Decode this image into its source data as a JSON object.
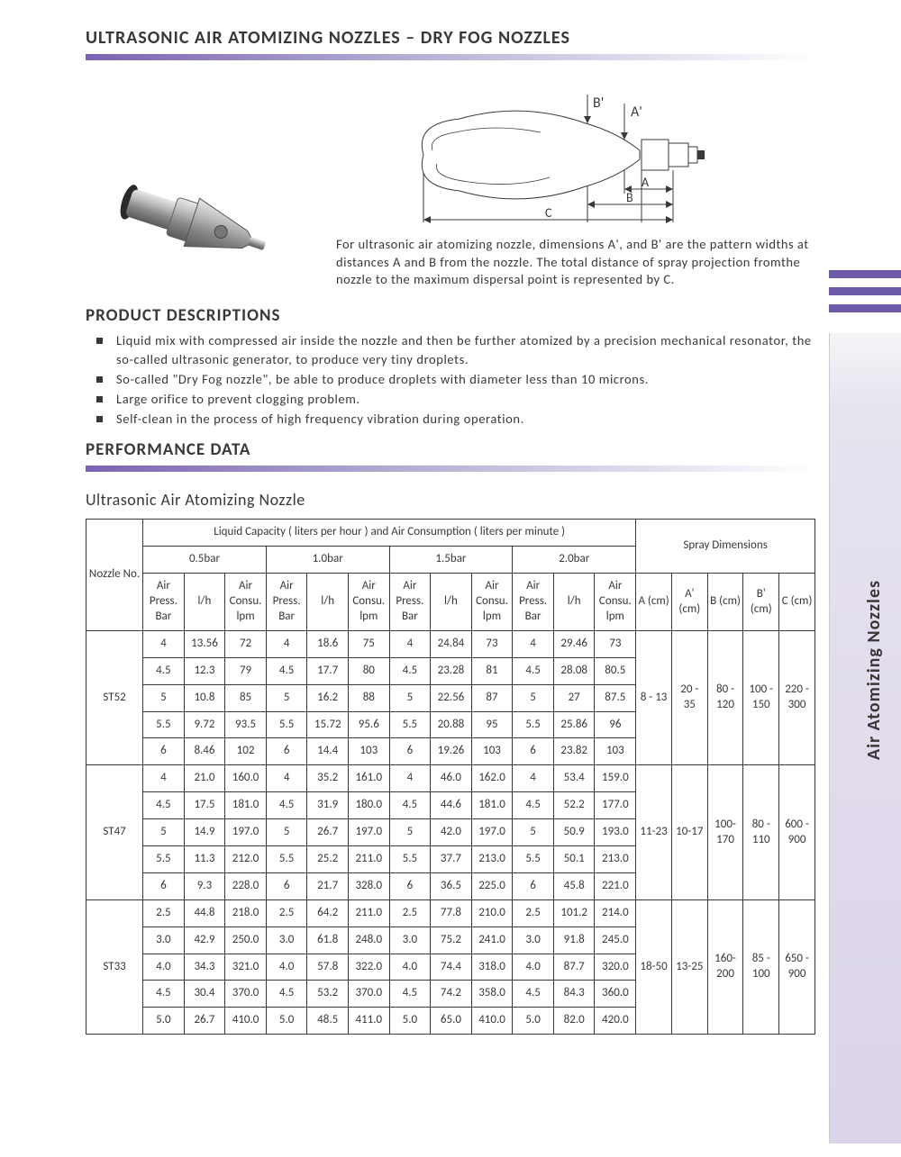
{
  "title": "ULTRASONIC AIR ATOMIZING NOZZLES – DRY FOG NOZZLES",
  "side_label": "Air Atomizing Nozzles",
  "diagram": {
    "labels": [
      "B'",
      "A'",
      "A",
      "B",
      "C"
    ],
    "text": "For ultrasonic air atomizing nozzle, dimensions A', and B' are the pattern widths at distances A and B from the nozzle. The total distance of spray projection fromthe nozzle to the maximum dispersal point is represented by C."
  },
  "colors": {
    "accent": "#6d5aa8",
    "text": "#3b3738",
    "border": "#3b3738",
    "grad_start": "#7865b1",
    "grad_mid": "#b8aed4"
  },
  "section_desc": "PRODUCT DESCRIPTIONS",
  "bullets": [
    "Liquid mix with compressed air inside the nozzle and then be further atomized by a precision mechanical resonator, the so-called ultrasonic generator, to produce very tiny droplets.",
    "So-called \"Dry Fog nozzle\", be able to produce droplets with diameter less than 10 microns.",
    "Large orifice to prevent clogging problem.",
    "Self-clean in the process of high frequency vibration during operation."
  ],
  "section_perf": "PERFORMANCE DATA",
  "sub_title": "Ultrasonic Air Atomizing Nozzle",
  "table": {
    "main_header": "Liquid Capacity ( liters per hour ) and Air Consumption ( liters per minute )",
    "spray_header": "Spray Dimensions",
    "nozzle_header": "Nozzle No.",
    "pressure_groups": [
      "0.5bar",
      "1.0bar",
      "1.5bar",
      "2.0bar"
    ],
    "sub_headers": [
      "Air Press. Bar",
      "l/h",
      "Air Consu. lpm"
    ],
    "sub_headers_last": [
      "Air Press. Bar",
      "l/h",
      "Air Consu. lpm"
    ],
    "dim_headers": [
      "A (cm)",
      "A' (cm)",
      "B (cm)",
      "B' (cm)",
      "C (cm)"
    ],
    "nozzles": [
      {
        "id": "ST52",
        "rows": [
          [
            "4",
            "13.56",
            "72",
            "4",
            "18.6",
            "75",
            "4",
            "24.84",
            "73",
            "4",
            "29.46",
            "73"
          ],
          [
            "4.5",
            "12.3",
            "79",
            "4.5",
            "17.7",
            "80",
            "4.5",
            "23.28",
            "81",
            "4.5",
            "28.08",
            "80.5"
          ],
          [
            "5",
            "10.8",
            "85",
            "5",
            "16.2",
            "88",
            "5",
            "22.56",
            "87",
            "5",
            "27",
            "87.5"
          ],
          [
            "5.5",
            "9.72",
            "93.5",
            "5.5",
            "15.72",
            "95.6",
            "5.5",
            "20.88",
            "95",
            "5.5",
            "25.86",
            "96"
          ],
          [
            "6",
            "8.46",
            "102",
            "6",
            "14.4",
            "103",
            "6",
            "19.26",
            "103",
            "6",
            "23.82",
            "103"
          ]
        ],
        "dims": [
          "8 - 13",
          "20 - 35",
          "80 - 120",
          "100 - 150",
          "220 - 300"
        ]
      },
      {
        "id": "ST47",
        "rows": [
          [
            "4",
            "21.0",
            "160.0",
            "4",
            "35.2",
            "161.0",
            "4",
            "46.0",
            "162.0",
            "4",
            "53.4",
            "159.0"
          ],
          [
            "4.5",
            "17.5",
            "181.0",
            "4.5",
            "31.9",
            "180.0",
            "4.5",
            "44.6",
            "181.0",
            "4.5",
            "52.2",
            "177.0"
          ],
          [
            "5",
            "14.9",
            "197.0",
            "5",
            "26.7",
            "197.0",
            "5",
            "42.0",
            "197.0",
            "5",
            "50.9",
            "193.0"
          ],
          [
            "5.5",
            "11.3",
            "212.0",
            "5.5",
            "25.2",
            "211.0",
            "5.5",
            "37.7",
            "213.0",
            "5.5",
            "50.1",
            "213.0"
          ],
          [
            "6",
            "9.3",
            "228.0",
            "6",
            "21.7",
            "328.0",
            "6",
            "36.5",
            "225.0",
            "6",
            "45.8",
            "221.0"
          ]
        ],
        "dims": [
          "11-23",
          "10-17",
          "100-170",
          "80 - 110",
          "600 - 900"
        ]
      },
      {
        "id": "ST33",
        "rows": [
          [
            "2.5",
            "44.8",
            "218.0",
            "2.5",
            "64.2",
            "211.0",
            "2.5",
            "77.8",
            "210.0",
            "2.5",
            "101.2",
            "214.0"
          ],
          [
            "3.0",
            "42.9",
            "250.0",
            "3.0",
            "61.8",
            "248.0",
            "3.0",
            "75.2",
            "241.0",
            "3.0",
            "91.8",
            "245.0"
          ],
          [
            "4.0",
            "34.3",
            "321.0",
            "4.0",
            "57.8",
            "322.0",
            "4.0",
            "74.4",
            "318.0",
            "4.0",
            "87.7",
            "320.0"
          ],
          [
            "4.5",
            "30.4",
            "370.0",
            "4.5",
            "53.2",
            "370.0",
            "4.5",
            "74.2",
            "358.0",
            "4.5",
            "84.3",
            "360.0"
          ],
          [
            "5.0",
            "26.7",
            "410.0",
            "5.0",
            "48.5",
            "411.0",
            "5.0",
            "65.0",
            "410.0",
            "5.0",
            "82.0",
            "420.0"
          ]
        ],
        "dims": [
          "18-50",
          "13-25",
          "160-200",
          "85 - 100",
          "650 - 900"
        ]
      }
    ]
  }
}
